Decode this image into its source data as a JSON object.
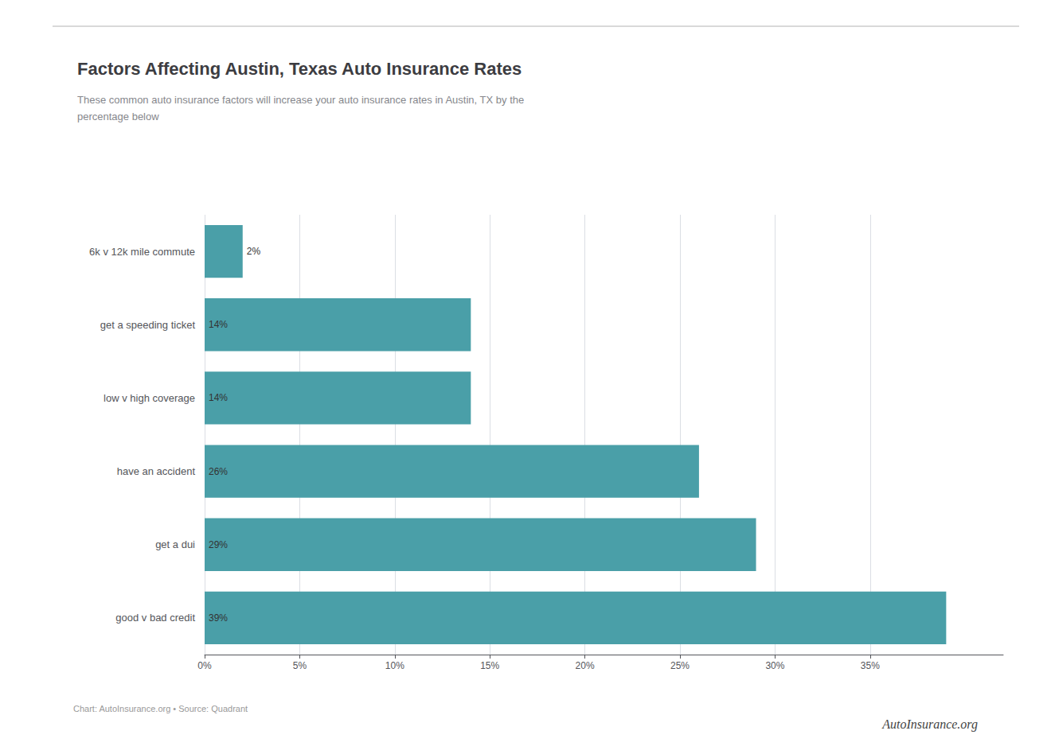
{
  "chart_data": {
    "type": "bar",
    "orientation": "horizontal",
    "title": "Factors Affecting Austin, Texas Auto Insurance Rates",
    "subtitle": "These common auto insurance factors will increase your auto insurance rates in Austin, TX by the\npercentage below",
    "categories": [
      "6k v 12k mile commute",
      "get a speeding ticket",
      "low v high coverage",
      "have an accident",
      "get a dui",
      "good v bad credit"
    ],
    "values": [
      2,
      14,
      14,
      26,
      29,
      39
    ],
    "value_labels": [
      "2%",
      "14%",
      "14%",
      "26%",
      "29%",
      "39%"
    ],
    "data_labels": true,
    "color": "#4a9fa8",
    "xlim": [
      0,
      42
    ],
    "xticks": [
      {
        "value": 0,
        "label": "0%"
      },
      {
        "value": 5,
        "label": "5%"
      },
      {
        "value": 10,
        "label": "10%"
      },
      {
        "value": 15,
        "label": "15%"
      },
      {
        "value": 20,
        "label": "20%"
      },
      {
        "value": 25,
        "label": "25%"
      },
      {
        "value": 30,
        "label": "30%"
      },
      {
        "value": 35,
        "label": "35%"
      }
    ],
    "grid": true,
    "annotations": [
      "Chart: AutoInsurance.org • Source: Quadrant",
      "AutoInsurance.org"
    ]
  }
}
